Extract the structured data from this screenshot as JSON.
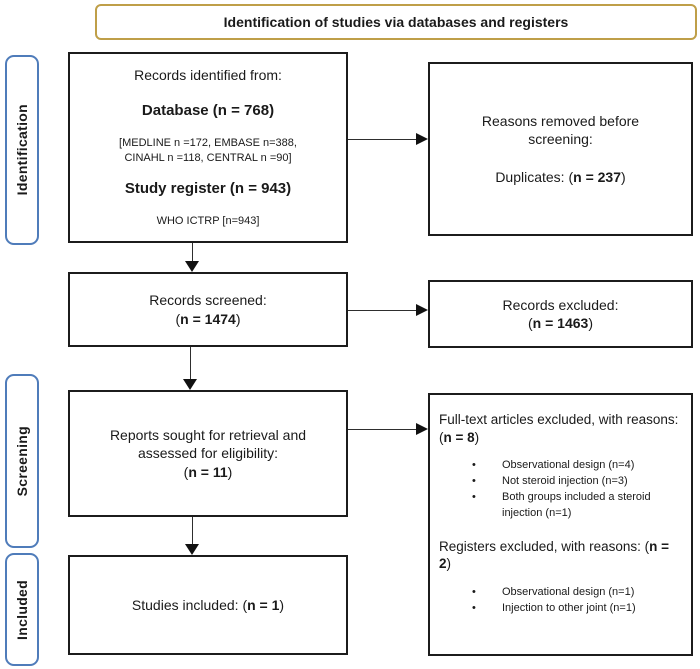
{
  "banner": {
    "title": "Identification of studies via databases and registers"
  },
  "sidebar": {
    "identification": "Identification",
    "screening": "Screening",
    "included": "Included"
  },
  "icons": {
    "bullet": "•"
  },
  "colors": {
    "banner_border": "#BF9F48",
    "stage_border": "#4F7CBA",
    "box_border": "#1C1C1C",
    "arrow": "#111111"
  },
  "flow": {
    "records_identified": {
      "intro": "Records identified from:",
      "database_heading": "Database (n = 768)",
      "database_sources_line1": "[MEDLINE n =172, EMBASE n=388,",
      "database_sources_line2": "CINAHL n =118, CENTRAL n =90]",
      "register_heading": "Study register (n = 943)",
      "register_source": "WHO ICTRP [n=943]"
    },
    "removed_before_screening": {
      "title_line1": "Reasons removed before",
      "title_line2": "screening:",
      "duplicates_prefix": "Duplicates: (",
      "duplicates_value": "n = 237",
      "close_paren": ")"
    },
    "records_screened": {
      "label": "Records screened:",
      "open_paren": "(",
      "value": "n = 1474",
      "close_paren": ")"
    },
    "records_excluded": {
      "label": "Records excluded:",
      "open_paren": "(",
      "value": "n = 1463",
      "close_paren": ")"
    },
    "reports_sought": {
      "label_line1": "Reports sought for retrieval and",
      "label_line2": "assessed for eligibility:",
      "open_paren": "(",
      "value": "n = 11",
      "close_paren": ")"
    },
    "fulltext_excluded": {
      "title_prefix": "Full-text articles excluded, with reasons: (",
      "value": "n = 8",
      "close_paren": ")",
      "bullets": [
        "Observational design (n=4)",
        "Not steroid injection (n=3)",
        "Both groups included a steroid injection (n=1)"
      ]
    },
    "registers_excluded": {
      "title_prefix": "Registers excluded, with reasons: (",
      "value": "n = 2",
      "close_paren": ")",
      "bullets": [
        "Observational design (n=1)",
        "Injection to other joint (n=1)"
      ]
    },
    "studies_included": {
      "label": "Studies included: (",
      "value": "n = 1",
      "close_paren": ")"
    }
  }
}
